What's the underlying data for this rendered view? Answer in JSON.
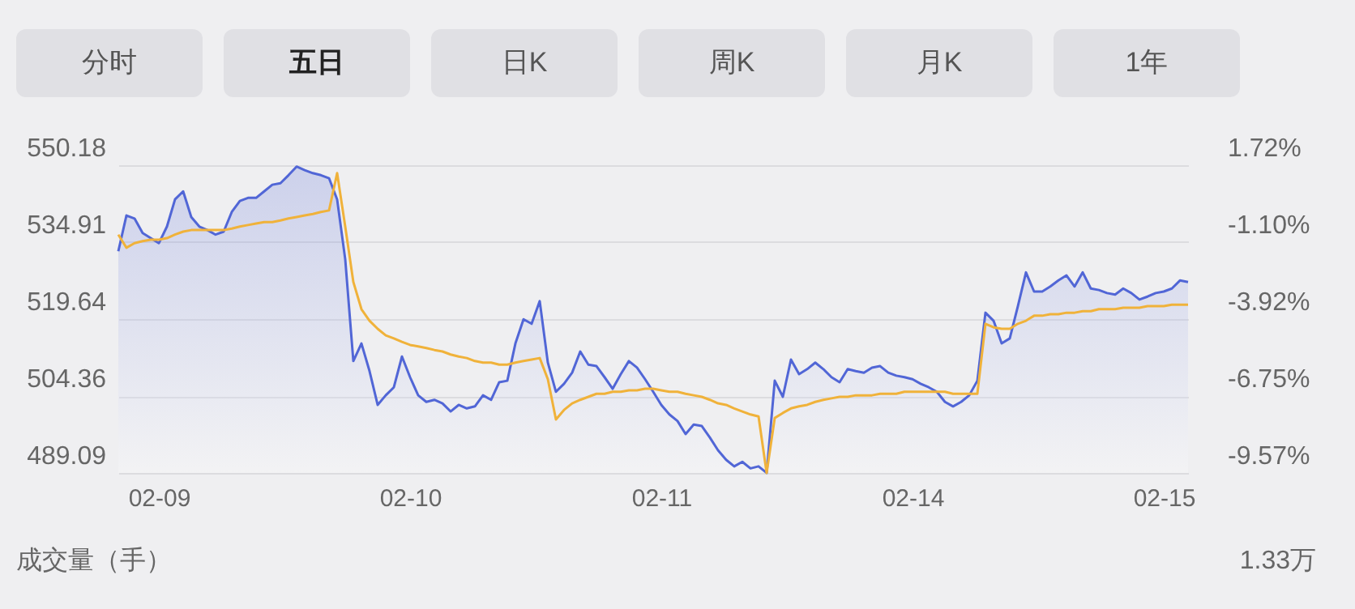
{
  "chart_data": {
    "type": "line",
    "annotations": [
      "分时",
      "五日",
      "日K",
      "周K",
      "月K",
      "1年",
      "成交量（手）",
      "1.33万"
    ],
    "categories": [
      null,
      null,
      null,
      null,
      null,
      "02-09",
      null,
      null,
      null,
      null,
      null,
      null,
      null,
      null,
      null,
      null,
      null,
      null,
      null,
      null,
      null,
      null,
      null,
      null,
      null,
      null,
      null,
      null,
      null,
      null,
      null,
      null,
      null,
      null,
      null,
      null,
      "02-10",
      null,
      null,
      null,
      null,
      null,
      null,
      null,
      null,
      null,
      null,
      null,
      null,
      null,
      null,
      null,
      null,
      null,
      null,
      null,
      null,
      null,
      null,
      null,
      null,
      null,
      null,
      null,
      null,
      null,
      null,
      "02-11",
      null,
      null,
      null,
      null,
      null,
      null,
      null,
      null,
      null,
      null,
      null,
      null,
      null,
      null,
      null,
      null,
      null,
      null,
      null,
      null,
      null,
      null,
      null,
      null,
      null,
      null,
      null,
      null,
      null,
      null,
      "02-14",
      null,
      null,
      null,
      null,
      null,
      null,
      null,
      null,
      null,
      null,
      null,
      null,
      null,
      null,
      null,
      null,
      null,
      null,
      null,
      null,
      null,
      null,
      null,
      null,
      null,
      null,
      null,
      null,
      null,
      null,
      "02-15",
      null,
      null,
      null
    ],
    "ylim": [
      489.09,
      550.18
    ],
    "yticks": [
      550.18,
      534.91,
      519.64,
      504.36,
      489.09
    ],
    "y2lim": [
      -9.57,
      1.72
    ],
    "y2ticks": [
      {
        "value": 1.72,
        "label": "1.72%"
      },
      {
        "value": -1.1,
        "label": "-1.10%"
      },
      {
        "value": -3.92,
        "label": "-3.92%"
      },
      {
        "value": -6.75,
        "label": "-6.75%"
      },
      {
        "value": -9.57,
        "label": "-9.57%"
      }
    ],
    "grid": "y",
    "series": [
      {
        "type": "area",
        "color": "#5166d6",
        "values": [
          533.1,
          540.2,
          539.6,
          536.7,
          535.7,
          534.7,
          538.0,
          543.4,
          545.0,
          539.9,
          538.0,
          537.3,
          536.4,
          537.0,
          540.9,
          543.1,
          543.7,
          543.7,
          545.0,
          546.3,
          546.6,
          548.2,
          549.9,
          549.2,
          548.6,
          548.2,
          547.6,
          543.4,
          531.5,
          511.3,
          514.8,
          509.3,
          502.6,
          504.5,
          506.1,
          512.2,
          508.1,
          504.5,
          503.2,
          503.6,
          502.9,
          501.3,
          502.6,
          501.9,
          502.3,
          504.5,
          503.6,
          507.1,
          507.4,
          514.8,
          519.6,
          518.7,
          523.2,
          511.0,
          505.2,
          506.8,
          509.0,
          513.2,
          510.6,
          510.3,
          508.1,
          505.8,
          508.7,
          511.3,
          510.0,
          507.7,
          505.2,
          502.6,
          500.7,
          499.4,
          496.8,
          498.7,
          498.4,
          496.1,
          493.6,
          491.7,
          490.4,
          491.3,
          490.0,
          490.4,
          489.1,
          507.4,
          504.2,
          511.6,
          508.7,
          509.7,
          511.0,
          509.7,
          508.1,
          507.1,
          509.7,
          509.3,
          509.0,
          510.0,
          510.3,
          509.0,
          508.4,
          508.1,
          507.7,
          506.8,
          506.1,
          505.2,
          503.2,
          502.3,
          503.2,
          504.5,
          507.4,
          520.9,
          519.3,
          514.8,
          515.8,
          522.2,
          528.9,
          525.1,
          525.1,
          526.1,
          527.3,
          528.3,
          526.1,
          528.9,
          525.7,
          525.4,
          524.8,
          524.5,
          525.7,
          524.8,
          523.5,
          524.1,
          524.8,
          525.1,
          525.7,
          527.3,
          527.0
        ]
      },
      {
        "color": "#f0b23a",
        "values": [
          536.4,
          533.8,
          534.7,
          535.1,
          535.4,
          535.4,
          535.7,
          536.4,
          537.0,
          537.3,
          537.3,
          537.3,
          537.3,
          537.3,
          537.6,
          538.0,
          538.3,
          538.6,
          538.9,
          538.9,
          539.2,
          539.6,
          539.9,
          540.2,
          540.5,
          540.9,
          541.2,
          548.6,
          538.0,
          527.0,
          521.6,
          519.3,
          517.7,
          516.4,
          515.8,
          515.1,
          514.5,
          514.2,
          513.9,
          513.5,
          513.2,
          512.6,
          512.2,
          511.9,
          511.3,
          511.0,
          511.0,
          510.6,
          510.6,
          511.0,
          511.3,
          511.6,
          511.9,
          507.7,
          499.7,
          501.6,
          502.9,
          503.6,
          504.2,
          504.8,
          504.8,
          505.2,
          505.2,
          505.5,
          505.5,
          505.8,
          505.8,
          505.5,
          505.2,
          505.2,
          504.8,
          504.5,
          504.2,
          503.6,
          502.9,
          502.6,
          501.9,
          501.3,
          500.7,
          500.3,
          489.1,
          500.0,
          501.0,
          501.9,
          502.3,
          502.6,
          503.2,
          503.6,
          503.9,
          504.2,
          504.2,
          504.5,
          504.5,
          504.5,
          504.8,
          504.8,
          504.8,
          505.2,
          505.2,
          505.2,
          505.2,
          505.2,
          505.2,
          504.8,
          504.8,
          504.8,
          504.8,
          518.7,
          518.0,
          517.7,
          517.7,
          518.7,
          519.3,
          520.3,
          520.3,
          520.6,
          520.6,
          520.9,
          520.9,
          521.2,
          521.2,
          521.6,
          521.6,
          521.6,
          521.9,
          521.9,
          521.9,
          522.2,
          522.2,
          522.2,
          522.5,
          522.5,
          522.5
        ]
      }
    ]
  }
}
